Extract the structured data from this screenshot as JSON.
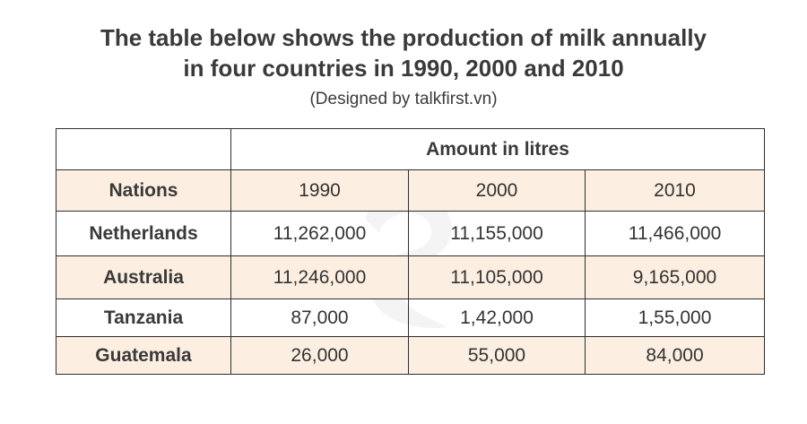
{
  "title_line1": "The table below shows the production of milk annually",
  "title_line2": "in four countries in 1990, 2000 and 2010",
  "subtitle": "(Designed by talkfirst.vn)",
  "colors": {
    "shade": "#fcefe1",
    "border": "#2e2e2e",
    "text": "#333333"
  },
  "chart_data": {
    "type": "table",
    "title": "The table below shows the production of milk annually in four countries in 1990, 2000 and 2010",
    "group_header": "Amount in litres",
    "row_header_label": "Nations",
    "columns": [
      "1990",
      "2000",
      "2010"
    ],
    "rows": [
      {
        "nation": "Netherlands",
        "values": [
          "11,262,000",
          "11,155,000",
          "11,466,000"
        ]
      },
      {
        "nation": "Australia",
        "values": [
          "11,246,000",
          "11,105,000",
          "9,165,000"
        ]
      },
      {
        "nation": "Tanzania",
        "values": [
          "87,000",
          "1,42,000",
          "1,55,000"
        ]
      },
      {
        "nation": "Guatemala",
        "values": [
          "26,000",
          "55,000",
          "84,000"
        ]
      }
    ]
  }
}
